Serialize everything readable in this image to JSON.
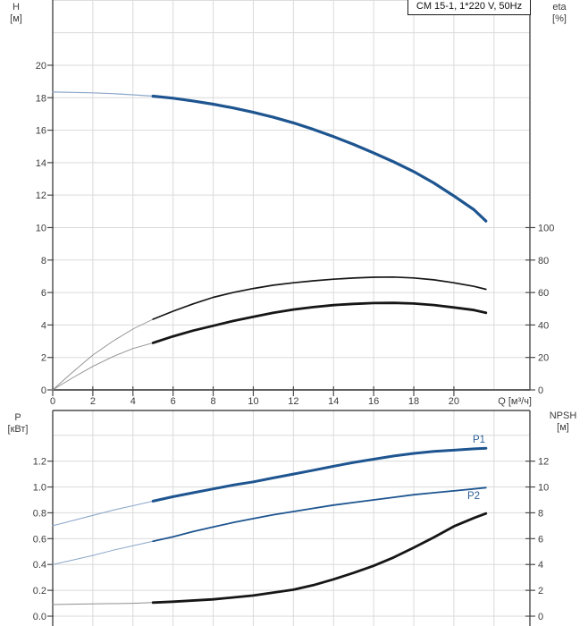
{
  "title_box": {
    "label": "CM 15-1, 1*220 V, 50Hz"
  },
  "colors": {
    "curve_blue": "#1e5590",
    "curve_blue_thin": "#8ba6c9",
    "curve_black": "#161616",
    "curve_thin_gray": "#8f8f8f",
    "grid": "#dadada",
    "axis": "#4a4a4a",
    "tick_text": "#3d3d3d",
    "label_blue": "#2d5f96",
    "box_border": "#1a1a1a"
  },
  "chart_data": [
    {
      "id": "head-efficiency",
      "type": "line",
      "title": "CM 15-1, 1*220 V, 50Hz",
      "x_axis": {
        "label": "Q [м³/ч]",
        "min": 0,
        "max": 23.79,
        "tick_values": [
          0,
          2,
          4,
          6,
          8,
          10,
          12,
          14,
          16,
          18,
          20
        ],
        "grid_values": [
          2,
          4,
          6,
          8,
          10,
          12,
          14,
          16,
          18,
          20,
          22
        ]
      },
      "y_left": {
        "label": "H",
        "unit": "[м]",
        "min": 0,
        "max": 24.02,
        "decimals": 0,
        "tick_values": [
          0,
          2,
          4,
          6,
          8,
          10,
          12,
          14,
          16,
          18,
          20
        ],
        "grid_values": [
          2,
          4,
          6,
          8,
          10,
          12,
          14,
          16,
          18,
          20,
          22,
          24
        ]
      },
      "y_right": {
        "label": "eta",
        "unit": "[%]",
        "min": 0,
        "max": 240.2,
        "decimals": 0,
        "tick_values": [
          0,
          20,
          40,
          60,
          80,
          100
        ]
      },
      "series": [
        {
          "name": "H-curve",
          "axis": "left",
          "color_key": "curve_blue",
          "width": 3.2,
          "thin_color_key": "curve_blue_thin",
          "thin_width": 1.2,
          "thin_until": 5,
          "points": [
            [
              0,
              18.35
            ],
            [
              1,
              18.33
            ],
            [
              2,
              18.3
            ],
            [
              3,
              18.25
            ],
            [
              4,
              18.18
            ],
            [
              5,
              18.1
            ],
            [
              6,
              17.97
            ],
            [
              7,
              17.8
            ],
            [
              8,
              17.6
            ],
            [
              9,
              17.37
            ],
            [
              10,
              17.1
            ],
            [
              11,
              16.8
            ],
            [
              12,
              16.45
            ],
            [
              13,
              16.05
            ],
            [
              14,
              15.6
            ],
            [
              15,
              15.12
            ],
            [
              16,
              14.6
            ],
            [
              17,
              14.05
            ],
            [
              18,
              13.45
            ],
            [
              19,
              12.75
            ],
            [
              20,
              11.95
            ],
            [
              21,
              11.1
            ],
            [
              21.6,
              10.4
            ]
          ]
        },
        {
          "name": "eta-pump",
          "axis": "right",
          "color_key": "curve_black",
          "width": 1.7,
          "thin_color_key": "curve_thin_gray",
          "thin_width": 0.9,
          "thin_until": 5,
          "points": [
            [
              0,
              0
            ],
            [
              1,
              11
            ],
            [
              2,
              21.5
            ],
            [
              3,
              30
            ],
            [
              4,
              37.5
            ],
            [
              5,
              43.5
            ],
            [
              6,
              48.5
            ],
            [
              7,
              53
            ],
            [
              8,
              57
            ],
            [
              9,
              60
            ],
            [
              10,
              62.5
            ],
            [
              11,
              64.5
            ],
            [
              12,
              66
            ],
            [
              13,
              67.2
            ],
            [
              14,
              68.2
            ],
            [
              15,
              68.9
            ],
            [
              16,
              69.4
            ],
            [
              17,
              69.5
            ],
            [
              18,
              69
            ],
            [
              19,
              67.8
            ],
            [
              20,
              66
            ],
            [
              21,
              63.8
            ],
            [
              21.6,
              62
            ]
          ]
        },
        {
          "name": "eta-pump-motor",
          "axis": "right",
          "color_key": "curve_black",
          "width": 2.8,
          "thin_color_key": "curve_thin_gray",
          "thin_width": 0.9,
          "thin_until": 5,
          "points": [
            [
              0,
              0
            ],
            [
              1,
              7.5
            ],
            [
              2,
              14.5
            ],
            [
              3,
              20.5
            ],
            [
              4,
              25.5
            ],
            [
              5,
              29
            ],
            [
              6,
              33
            ],
            [
              7,
              36.5
            ],
            [
              8,
              39.5
            ],
            [
              9,
              42.5
            ],
            [
              10,
              45
            ],
            [
              11,
              47.5
            ],
            [
              12,
              49.5
            ],
            [
              13,
              51
            ],
            [
              14,
              52.2
            ],
            [
              15,
              53
            ],
            [
              16,
              53.5
            ],
            [
              17,
              53.6
            ],
            [
              18,
              53.2
            ],
            [
              19,
              52.3
            ],
            [
              20,
              50.8
            ],
            [
              21,
              49.2
            ],
            [
              21.6,
              47.5
            ]
          ]
        }
      ],
      "annotations": []
    },
    {
      "id": "power-npsh",
      "type": "line",
      "title": "",
      "x_axis": {
        "label": "",
        "min": 0,
        "max": 23.79,
        "tick_values": [],
        "grid_values": [
          2,
          4,
          6,
          8,
          10,
          12,
          14,
          16,
          18,
          20,
          22
        ]
      },
      "y_left": {
        "label": "P",
        "unit": "[кВт]",
        "min": -0.076,
        "max": 1.592,
        "decimals": 1,
        "tick_values": [
          0,
          0.2,
          0.4,
          0.6,
          0.8,
          1,
          1.2
        ],
        "grid_values": [
          0,
          0.2,
          0.4,
          0.6,
          0.8,
          1,
          1.2,
          1.4
        ]
      },
      "y_right": {
        "label": "NPSH",
        "unit": "[м]",
        "min": -0.76,
        "max": 15.92,
        "decimals": 0,
        "tick_values": [
          0,
          2,
          4,
          6,
          8,
          10,
          12
        ]
      },
      "series": [
        {
          "name": "P1-curve",
          "axis": "left",
          "color_key": "curve_blue",
          "width": 3.0,
          "thin_color_key": "curve_blue_thin",
          "thin_width": 1.1,
          "thin_until": 5,
          "points": [
            [
              0,
              0.7
            ],
            [
              1,
              0.74
            ],
            [
              2,
              0.78
            ],
            [
              3,
              0.82
            ],
            [
              4,
              0.855
            ],
            [
              5,
              0.89
            ],
            [
              6,
              0.925
            ],
            [
              7,
              0.955
            ],
            [
              8,
              0.985
            ],
            [
              9,
              1.015
            ],
            [
              10,
              1.04
            ],
            [
              11,
              1.07
            ],
            [
              12,
              1.1
            ],
            [
              13,
              1.13
            ],
            [
              14,
              1.16
            ],
            [
              15,
              1.19
            ],
            [
              16,
              1.215
            ],
            [
              17,
              1.24
            ],
            [
              18,
              1.26
            ],
            [
              19,
              1.275
            ],
            [
              20,
              1.285
            ],
            [
              21,
              1.295
            ],
            [
              21.6,
              1.3
            ]
          ]
        },
        {
          "name": "P2-curve",
          "axis": "left",
          "color_key": "curve_blue",
          "width": 1.8,
          "thin_color_key": "curve_blue_thin",
          "thin_width": 1.0,
          "thin_until": 5,
          "points": [
            [
              0,
              0.4
            ],
            [
              1,
              0.435
            ],
            [
              2,
              0.47
            ],
            [
              3,
              0.51
            ],
            [
              4,
              0.545
            ],
            [
              5,
              0.58
            ],
            [
              6,
              0.615
            ],
            [
              7,
              0.655
            ],
            [
              8,
              0.69
            ],
            [
              9,
              0.725
            ],
            [
              10,
              0.755
            ],
            [
              11,
              0.785
            ],
            [
              12,
              0.81
            ],
            [
              13,
              0.835
            ],
            [
              14,
              0.86
            ],
            [
              15,
              0.88
            ],
            [
              16,
              0.9
            ],
            [
              17,
              0.92
            ],
            [
              18,
              0.94
            ],
            [
              19,
              0.955
            ],
            [
              20,
              0.97
            ],
            [
              21,
              0.985
            ],
            [
              21.6,
              0.995
            ]
          ]
        },
        {
          "name": "NPSH-curve",
          "axis": "right",
          "color_key": "curve_black",
          "width": 2.8,
          "thin_color_key": "curve_thin_gray",
          "thin_width": 1.0,
          "thin_until": 5,
          "points": [
            [
              0,
              0.9
            ],
            [
              2,
              0.95
            ],
            [
              4,
              1.0
            ],
            [
              5,
              1.05
            ],
            [
              6,
              1.12
            ],
            [
              8,
              1.3
            ],
            [
              10,
              1.6
            ],
            [
              12,
              2.05
            ],
            [
              13,
              2.4
            ],
            [
              14,
              2.85
            ],
            [
              15,
              3.35
            ],
            [
              16,
              3.9
            ],
            [
              17,
              4.55
            ],
            [
              18,
              5.3
            ],
            [
              19,
              6.1
            ],
            [
              20,
              6.95
            ],
            [
              21,
              7.6
            ],
            [
              21.6,
              7.95
            ]
          ]
        }
      ],
      "annotations": [
        {
          "text": "P1",
          "x": 21.25,
          "y": 1.35,
          "axis": "left"
        },
        {
          "text": "P2",
          "x": 21.0,
          "y": 0.925,
          "axis": "left"
        }
      ]
    }
  ]
}
